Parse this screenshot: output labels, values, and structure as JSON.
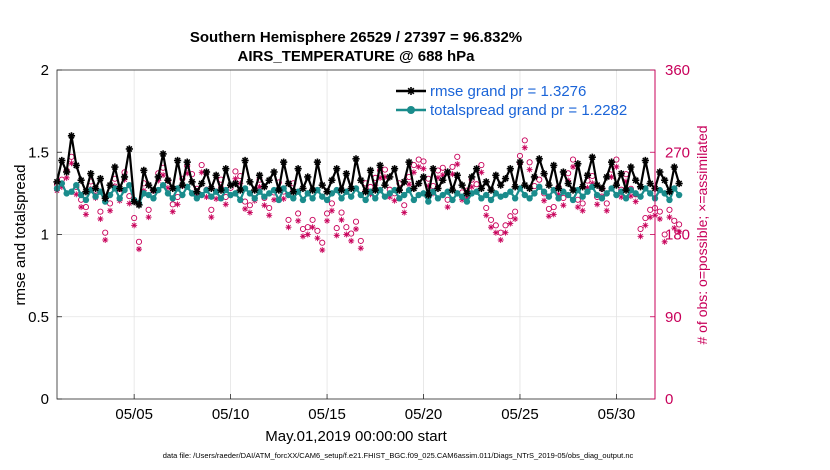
{
  "chart_data": {
    "type": "line",
    "title_line1": "Southern Hemisphere 26529 / 27397 = 96.832%",
    "title_line2": "AIRS_TEMPERATURE @ 688 hPa",
    "xlabel": "May.01,2019 00:00:00 start",
    "ylabel": "rmse and totalspread",
    "y2label": "# of obs: o=possible; ×=assimilated",
    "xlim": [
      1.0,
      32.0
    ],
    "ylim": [
      0,
      2
    ],
    "y2lim": [
      0,
      360
    ],
    "x_ticks": [
      {
        "value": 5,
        "label": "05/05"
      },
      {
        "value": 10,
        "label": "05/10"
      },
      {
        "value": 15,
        "label": "05/15"
      },
      {
        "value": 20,
        "label": "05/20"
      },
      {
        "value": 25,
        "label": "05/25"
      },
      {
        "value": 30,
        "label": "05/30"
      }
    ],
    "y_ticks": [
      {
        "value": 0,
        "label": "0"
      },
      {
        "value": 0.5,
        "label": "0.5"
      },
      {
        "value": 1,
        "label": "1"
      },
      {
        "value": 1.5,
        "label": "1.5"
      },
      {
        "value": 2,
        "label": "2"
      }
    ],
    "y2_ticks": [
      {
        "value": 0,
        "label": "0"
      },
      {
        "value": 90,
        "label": "90"
      },
      {
        "value": 180,
        "label": "180"
      },
      {
        "value": 270,
        "label": "270"
      },
      {
        "value": 360,
        "label": "360"
      }
    ],
    "legend_position": "top-right",
    "series": [
      {
        "name": "rmse",
        "legend": "rmse grand pr = 1.3276",
        "color": "#000000",
        "marker": "asterisk",
        "x_start": 1.0,
        "x_step": 0.25,
        "values": [
          1.32,
          1.45,
          1.38,
          1.6,
          1.42,
          1.33,
          1.26,
          1.37,
          1.28,
          1.34,
          1.22,
          1.3,
          1.41,
          1.28,
          1.35,
          1.52,
          1.2,
          1.18,
          1.39,
          1.3,
          1.27,
          1.35,
          1.49,
          1.33,
          1.28,
          1.45,
          1.3,
          1.44,
          1.32,
          1.26,
          1.31,
          1.38,
          1.28,
          1.36,
          1.27,
          1.4,
          1.3,
          1.31,
          1.27,
          1.45,
          1.32,
          1.27,
          1.36,
          1.29,
          1.33,
          1.38,
          1.27,
          1.44,
          1.31,
          1.26,
          1.4,
          1.28,
          1.35,
          1.27,
          1.44,
          1.3,
          1.26,
          1.33,
          1.4,
          1.27,
          1.37,
          1.28,
          1.46,
          1.33,
          1.26,
          1.39,
          1.27,
          1.42,
          1.3,
          1.35,
          1.4,
          1.27,
          1.32,
          1.44,
          1.28,
          1.31,
          1.35,
          1.24,
          1.4,
          1.28,
          1.33,
          1.38,
          1.27,
          1.36,
          1.3,
          1.25,
          1.35,
          1.4,
          1.28,
          1.32,
          1.27,
          1.36,
          1.3,
          1.34,
          1.4,
          1.29,
          1.44,
          1.3,
          1.28,
          1.35,
          1.46,
          1.37,
          1.3,
          1.42,
          1.28,
          1.38,
          1.31,
          1.27,
          1.43,
          1.29,
          1.36,
          1.47,
          1.3,
          1.28,
          1.35,
          1.44,
          1.3,
          1.37,
          1.27,
          1.41,
          1.33,
          1.29,
          1.45,
          1.31,
          1.28,
          1.38,
          1.33,
          1.26,
          1.41,
          1.31
        ]
      },
      {
        "name": "totalspread",
        "legend": "totalspread grand pr = 1.2282",
        "color": "#1a8c8c",
        "marker": "circle-filled",
        "x_start": 1.0,
        "x_step": 0.25,
        "values": [
          1.28,
          1.31,
          1.25,
          1.26,
          1.3,
          1.24,
          1.21,
          1.27,
          1.23,
          1.26,
          1.2,
          1.24,
          1.28,
          1.22,
          1.27,
          1.3,
          1.21,
          1.19,
          1.25,
          1.24,
          1.22,
          1.27,
          1.3,
          1.25,
          1.22,
          1.28,
          1.24,
          1.29,
          1.25,
          1.22,
          1.24,
          1.27,
          1.23,
          1.26,
          1.22,
          1.27,
          1.24,
          1.25,
          1.21,
          1.28,
          1.25,
          1.22,
          1.26,
          1.23,
          1.25,
          1.27,
          1.21,
          1.28,
          1.24,
          1.22,
          1.26,
          1.21,
          1.25,
          1.22,
          1.27,
          1.23,
          1.21,
          1.25,
          1.27,
          1.22,
          1.26,
          1.23,
          1.28,
          1.24,
          1.21,
          1.26,
          1.22,
          1.27,
          1.23,
          1.25,
          1.27,
          1.22,
          1.24,
          1.27,
          1.21,
          1.24,
          1.25,
          1.2,
          1.26,
          1.22,
          1.24,
          1.26,
          1.21,
          1.25,
          1.23,
          1.2,
          1.25,
          1.26,
          1.22,
          1.24,
          1.21,
          1.25,
          1.23,
          1.24,
          1.26,
          1.22,
          1.28,
          1.24,
          1.22,
          1.25,
          1.29,
          1.26,
          1.23,
          1.27,
          1.22,
          1.26,
          1.24,
          1.21,
          1.27,
          1.23,
          1.26,
          1.29,
          1.24,
          1.22,
          1.25,
          1.28,
          1.24,
          1.26,
          1.22,
          1.27,
          1.25,
          1.23,
          1.28,
          1.25,
          1.22,
          1.27,
          1.25,
          1.21,
          1.28,
          1.24
        ]
      },
      {
        "name": "obs_possible",
        "color": "#c8005a",
        "marker": "open-circle",
        "axis": "right",
        "x_start": 1.0,
        "x_step": 0.25,
        "values": [
          235,
          240,
          250,
          265,
          232,
          218,
          210,
          238,
          228,
          205,
          182,
          214,
          241,
          225,
          248,
          222,
          198,
          172,
          236,
          207,
          228,
          247,
          253,
          239,
          213,
          221,
          241,
          255,
          246,
          230,
          256,
          229,
          207,
          227,
          240,
          221,
          231,
          249,
          244,
          216,
          212,
          225,
          240,
          220,
          209,
          226,
          237,
          227,
          196,
          236,
          203,
          186,
          188,
          196,
          184,
          171,
          203,
          214,
          187,
          204,
          188,
          181,
          194,
          173,
          236,
          232,
          242,
          250,
          251,
          229,
          225,
          236,
          212,
          243,
          256,
          262,
          260,
          241,
          233,
          250,
          253,
          218,
          254,
          265,
          226,
          228,
          240,
          235,
          256,
          209,
          196,
          190,
          182,
          190,
          200,
          205,
          266,
          283,
          259,
          233,
          240,
          225,
          208,
          210,
          232,
          220,
          247,
          262,
          218,
          214,
          239,
          244,
          221,
          230,
          214,
          251,
          262,
          229,
          246,
          230,
          224,
          186,
          198,
          207,
          209,
          205,
          180,
          207,
          195,
          191
        ]
      },
      {
        "name": "obs_assimilated",
        "color": "#c8005a",
        "marker": "asterisk",
        "axis": "right",
        "x_start": 1.0,
        "x_step": 0.25,
        "values": [
          228,
          232,
          242,
          258,
          224,
          210,
          202,
          230,
          220,
          197,
          174,
          206,
          233,
          217,
          240,
          214,
          190,
          164,
          228,
          199,
          220,
          239,
          245,
          231,
          205,
          213,
          233,
          247,
          238,
          222,
          248,
          221,
          199,
          219,
          232,
          213,
          223,
          241,
          236,
          208,
          204,
          217,
          232,
          212,
          201,
          218,
          229,
          219,
          188,
          228,
          195,
          178,
          180,
          188,
          176,
          163,
          195,
          206,
          179,
          196,
          180,
          173,
          186,
          165,
          228,
          224,
          234,
          242,
          243,
          221,
          217,
          228,
          204,
          235,
          248,
          254,
          252,
          233,
          225,
          242,
          245,
          210,
          246,
          257,
          218,
          220,
          232,
          227,
          248,
          201,
          188,
          182,
          174,
          182,
          192,
          197,
          258,
          275,
          251,
          225,
          232,
          217,
          200,
          202,
          224,
          212,
          239,
          254,
          210,
          206,
          231,
          236,
          213,
          222,
          206,
          243,
          254,
          221,
          238,
          222,
          216,
          178,
          190,
          199,
          201,
          197,
          172,
          199,
          187,
          183
        ]
      }
    ]
  },
  "footer": "data file: /Users/raeder/DAI/ATM_forcXX/CAM6_setup/f.e21.FHIST_BGC.f09_025.CAM6assim.011/Diags_NTrS_2019-05/obs_diag_output.nc"
}
